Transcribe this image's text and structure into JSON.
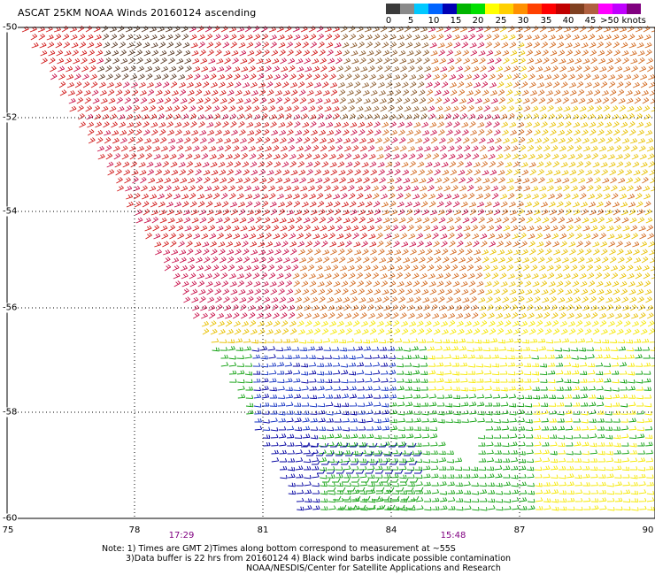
{
  "title": "ASCAT 25KM NOAA Winds 20160124 ascending",
  "legend": {
    "labels": [
      "0",
      "5",
      "10",
      "15",
      "20",
      "25",
      "30",
      "35",
      "40",
      "45",
      ">50 knots"
    ],
    "colors": [
      "#3a3a3a",
      "#8a8a8a",
      "#00c8ff",
      "#0064ff",
      "#0000b4",
      "#00b400",
      "#00e000",
      "#ffff00",
      "#ffd000",
      "#ff9000",
      "#ff4000",
      "#ff0000",
      "#c00000",
      "#804020",
      "#b06040",
      "#ff00ff",
      "#c000ff",
      "#800080"
    ]
  },
  "map": {
    "lat_labels": [
      "-50",
      "-52",
      "-54",
      "-56",
      "-58",
      "-60"
    ],
    "lon_labels": [
      "75",
      "78",
      "81",
      "84",
      "87",
      "90"
    ],
    "time_labels": [
      "17:29",
      "15:48"
    ],
    "palette": {
      "dark_brown": "#5a3a26",
      "brown": "#8b5a2b",
      "red": "#d01818",
      "crimson": "#c8104a",
      "orange": "#d2691e",
      "gold": "#e8c000",
      "yellow": "#f5e800",
      "green": "#10a010",
      "blue": "#1030c0",
      "navy": "#0000a0"
    }
  },
  "notes": {
    "line1": "Note: 1) Times are GMT 2)Times along bottom correspond to measurement at ~55S",
    "line2": "3)Data buffer is 22 hrs from 20160124 4) Black wind barbs indicate possible contamination",
    "line3": "NOAA/NESDIS/Center for Satellite Applications and Research"
  }
}
